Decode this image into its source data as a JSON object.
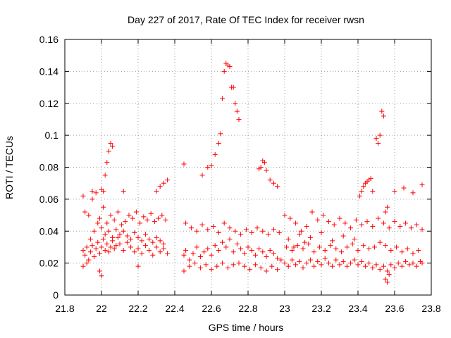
{
  "chart_data": {
    "type": "scatter",
    "title": "Day 227 of 2017, Rate Of TEC Index for receiver rwsn",
    "xlabel": "GPS time / hours",
    "ylabel": "ROTI / TECUs",
    "xlim": [
      21.8,
      23.8
    ],
    "ylim": [
      0,
      0.16
    ],
    "x_ticks": [
      "21.8",
      "22",
      "22.2",
      "22.4",
      "22.6",
      "22.8",
      "23",
      "23.2",
      "23.4",
      "23.6",
      "23.8"
    ],
    "y_ticks": [
      "0",
      "0.02",
      "0.04",
      "0.06",
      "0.08",
      "0.1",
      "0.12",
      "0.14",
      "0.16"
    ],
    "grid": true,
    "marker": "+",
    "color": "#ff0000",
    "series": [
      {
        "x": [
          21.9,
          21.91,
          21.92,
          21.93,
          21.94,
          21.95,
          21.96,
          21.97,
          21.98,
          21.99,
          22.0,
          22.01,
          22.02,
          22.03,
          22.04,
          22.05,
          22.06,
          22.07,
          22.08,
          22.09,
          22.1,
          22.12,
          22.14,
          22.16,
          22.18,
          22.2,
          22.22,
          22.24,
          22.26,
          22.28,
          22.3,
          22.32,
          22.34,
          22.36,
          21.9,
          21.92,
          21.94,
          21.96,
          21.98,
          22.0,
          22.02,
          22.04,
          22.06,
          22.08,
          22.1,
          22.12,
          22.14,
          22.16,
          22.18,
          22.2,
          22.22,
          22.24,
          22.26,
          22.28,
          22.3,
          22.32,
          22.34,
          21.91,
          21.93,
          21.95,
          21.97,
          21.99,
          22.01,
          22.03,
          22.05,
          22.07,
          22.09,
          22.11,
          22.13,
          22.15,
          22.17,
          22.19,
          22.21,
          22.23,
          22.25,
          22.27,
          22.29,
          22.31,
          22.33,
          22.35,
          21.9,
          21.95,
          22.0,
          22.01,
          22.02,
          22.03,
          22.04,
          22.05,
          22.06,
          22.3,
          22.32,
          22.34,
          22.36,
          21.99,
          22.0,
          22.12,
          22.2,
          22.45,
          22.46,
          22.48,
          22.5,
          22.52,
          22.54,
          22.56,
          22.58,
          22.6,
          22.62,
          22.64,
          22.66,
          22.68,
          22.7,
          22.72,
          22.74,
          22.76,
          22.78,
          22.8,
          22.82,
          22.84,
          22.86,
          22.88,
          22.9,
          22.92,
          22.94,
          22.96,
          22.98,
          22.46,
          22.49,
          22.52,
          22.55,
          22.58,
          22.61,
          22.64,
          22.67,
          22.7,
          22.73,
          22.76,
          22.79,
          22.82,
          22.85,
          22.88,
          22.91,
          22.94,
          22.97,
          22.45,
          22.48,
          22.51,
          22.54,
          22.57,
          22.6,
          22.63,
          22.66,
          22.69,
          22.72,
          22.75,
          22.78,
          22.81,
          22.84,
          22.87,
          22.9,
          22.93,
          22.96,
          22.45,
          22.55,
          22.58,
          22.6,
          22.62,
          22.64,
          22.65,
          22.66,
          22.67,
          22.68,
          22.69,
          22.7,
          22.71,
          22.72,
          22.73,
          22.74,
          22.75,
          22.86,
          22.87,
          22.88,
          22.89,
          22.9,
          22.92,
          22.94,
          22.96,
          23.0,
          23.02,
          23.04,
          23.06,
          23.08,
          23.1,
          23.12,
          23.14,
          23.16,
          23.18,
          23.2,
          23.22,
          23.24,
          23.26,
          23.28,
          23.3,
          23.32,
          23.34,
          23.36,
          23.38,
          23.4,
          23.42,
          23.44,
          23.46,
          23.48,
          23.5,
          23.52,
          23.54,
          23.56,
          23.58,
          23.6,
          23.62,
          23.64,
          23.66,
          23.68,
          23.7,
          23.72,
          23.74,
          23.75,
          23.01,
          23.04,
          23.07,
          23.1,
          23.13,
          23.16,
          23.19,
          23.22,
          23.25,
          23.28,
          23.31,
          23.34,
          23.37,
          23.4,
          23.43,
          23.46,
          23.49,
          23.52,
          23.55,
          23.58,
          23.61,
          23.64,
          23.67,
          23.7,
          23.73,
          23.0,
          23.03,
          23.06,
          23.09,
          23.12,
          23.15,
          23.18,
          23.21,
          23.24,
          23.27,
          23.3,
          23.33,
          23.36,
          23.39,
          23.42,
          23.45,
          23.48,
          23.51,
          23.54,
          23.57,
          23.6,
          23.63,
          23.66,
          23.69,
          23.72,
          23.75,
          23.02,
          23.05,
          23.08,
          23.11,
          23.14,
          23.2,
          23.26,
          23.32,
          23.38,
          23.41,
          23.42,
          23.43,
          23.44,
          23.45,
          23.46,
          23.47,
          23.48,
          23.5,
          23.51,
          23.52,
          23.53,
          23.54,
          23.55,
          23.56,
          23.6,
          23.65,
          23.7,
          23.75,
          23.55,
          23.56,
          23.57
        ],
        "y": [
          0.028,
          0.025,
          0.03,
          0.022,
          0.027,
          0.031,
          0.024,
          0.029,
          0.033,
          0.026,
          0.03,
          0.035,
          0.028,
          0.032,
          0.027,
          0.03,
          0.034,
          0.029,
          0.031,
          0.036,
          0.032,
          0.028,
          0.033,
          0.03,
          0.027,
          0.029,
          0.026,
          0.031,
          0.028,
          0.025,
          0.03,
          0.027,
          0.029,
          0.026,
          0.018,
          0.02,
          0.035,
          0.04,
          0.045,
          0.042,
          0.038,
          0.04,
          0.036,
          0.041,
          0.038,
          0.04,
          0.037,
          0.035,
          0.039,
          0.036,
          0.034,
          0.038,
          0.035,
          0.033,
          0.036,
          0.034,
          0.032,
          0.052,
          0.05,
          0.06,
          0.064,
          0.048,
          0.055,
          0.045,
          0.05,
          0.047,
          0.052,
          0.044,
          0.046,
          0.05,
          0.048,
          0.052,
          0.045,
          0.049,
          0.047,
          0.051,
          0.046,
          0.048,
          0.05,
          0.047,
          0.062,
          0.065,
          0.066,
          0.065,
          0.075,
          0.083,
          0.09,
          0.095,
          0.093,
          0.065,
          0.068,
          0.07,
          0.072,
          0.015,
          0.012,
          0.065,
          0.018,
          0.025,
          0.028,
          0.022,
          0.026,
          0.03,
          0.024,
          0.027,
          0.029,
          0.025,
          0.031,
          0.028,
          0.033,
          0.03,
          0.035,
          0.027,
          0.032,
          0.029,
          0.026,
          0.03,
          0.028,
          0.025,
          0.029,
          0.027,
          0.024,
          0.028,
          0.026,
          0.023,
          0.022,
          0.045,
          0.042,
          0.04,
          0.044,
          0.041,
          0.043,
          0.039,
          0.045,
          0.042,
          0.04,
          0.038,
          0.041,
          0.039,
          0.042,
          0.04,
          0.038,
          0.041,
          0.039,
          0.015,
          0.018,
          0.02,
          0.017,
          0.019,
          0.016,
          0.018,
          0.02,
          0.017,
          0.019,
          0.02,
          0.018,
          0.016,
          0.019,
          0.017,
          0.015,
          0.018,
          0.016,
          0.082,
          0.075,
          0.08,
          0.081,
          0.088,
          0.095,
          0.101,
          0.123,
          0.14,
          0.145,
          0.144,
          0.143,
          0.13,
          0.13,
          0.12,
          0.115,
          0.11,
          0.079,
          0.08,
          0.084,
          0.083,
          0.078,
          0.072,
          0.07,
          0.068,
          0.02,
          0.018,
          0.022,
          0.019,
          0.021,
          0.017,
          0.02,
          0.022,
          0.018,
          0.021,
          0.019,
          0.023,
          0.02,
          0.018,
          0.022,
          0.019,
          0.021,
          0.018,
          0.02,
          0.022,
          0.019,
          0.021,
          0.018,
          0.02,
          0.017,
          0.019,
          0.016,
          0.018,
          0.015,
          0.019,
          0.017,
          0.02,
          0.018,
          0.021,
          0.019,
          0.02,
          0.018,
          0.021,
          0.02,
          0.03,
          0.028,
          0.031,
          0.029,
          0.032,
          0.027,
          0.03,
          0.028,
          0.031,
          0.029,
          0.027,
          0.03,
          0.032,
          0.028,
          0.031,
          0.029,
          0.03,
          0.033,
          0.031,
          0.028,
          0.03,
          0.027,
          0.029,
          0.026,
          0.028,
          0.05,
          0.048,
          0.045,
          0.04,
          0.043,
          0.052,
          0.047,
          0.05,
          0.046,
          0.044,
          0.048,
          0.045,
          0.042,
          0.047,
          0.044,
          0.046,
          0.043,
          0.048,
          0.045,
          0.042,
          0.046,
          0.043,
          0.045,
          0.042,
          0.044,
          0.041,
          0.035,
          0.03,
          0.038,
          0.033,
          0.036,
          0.039,
          0.034,
          0.037,
          0.035,
          0.062,
          0.065,
          0.068,
          0.07,
          0.071,
          0.072,
          0.073,
          0.065,
          0.098,
          0.095,
          0.1,
          0.115,
          0.112,
          0.052,
          0.055,
          0.065,
          0.067,
          0.064,
          0.069,
          0.01,
          0.008,
          0.013
        ]
      }
    ]
  }
}
